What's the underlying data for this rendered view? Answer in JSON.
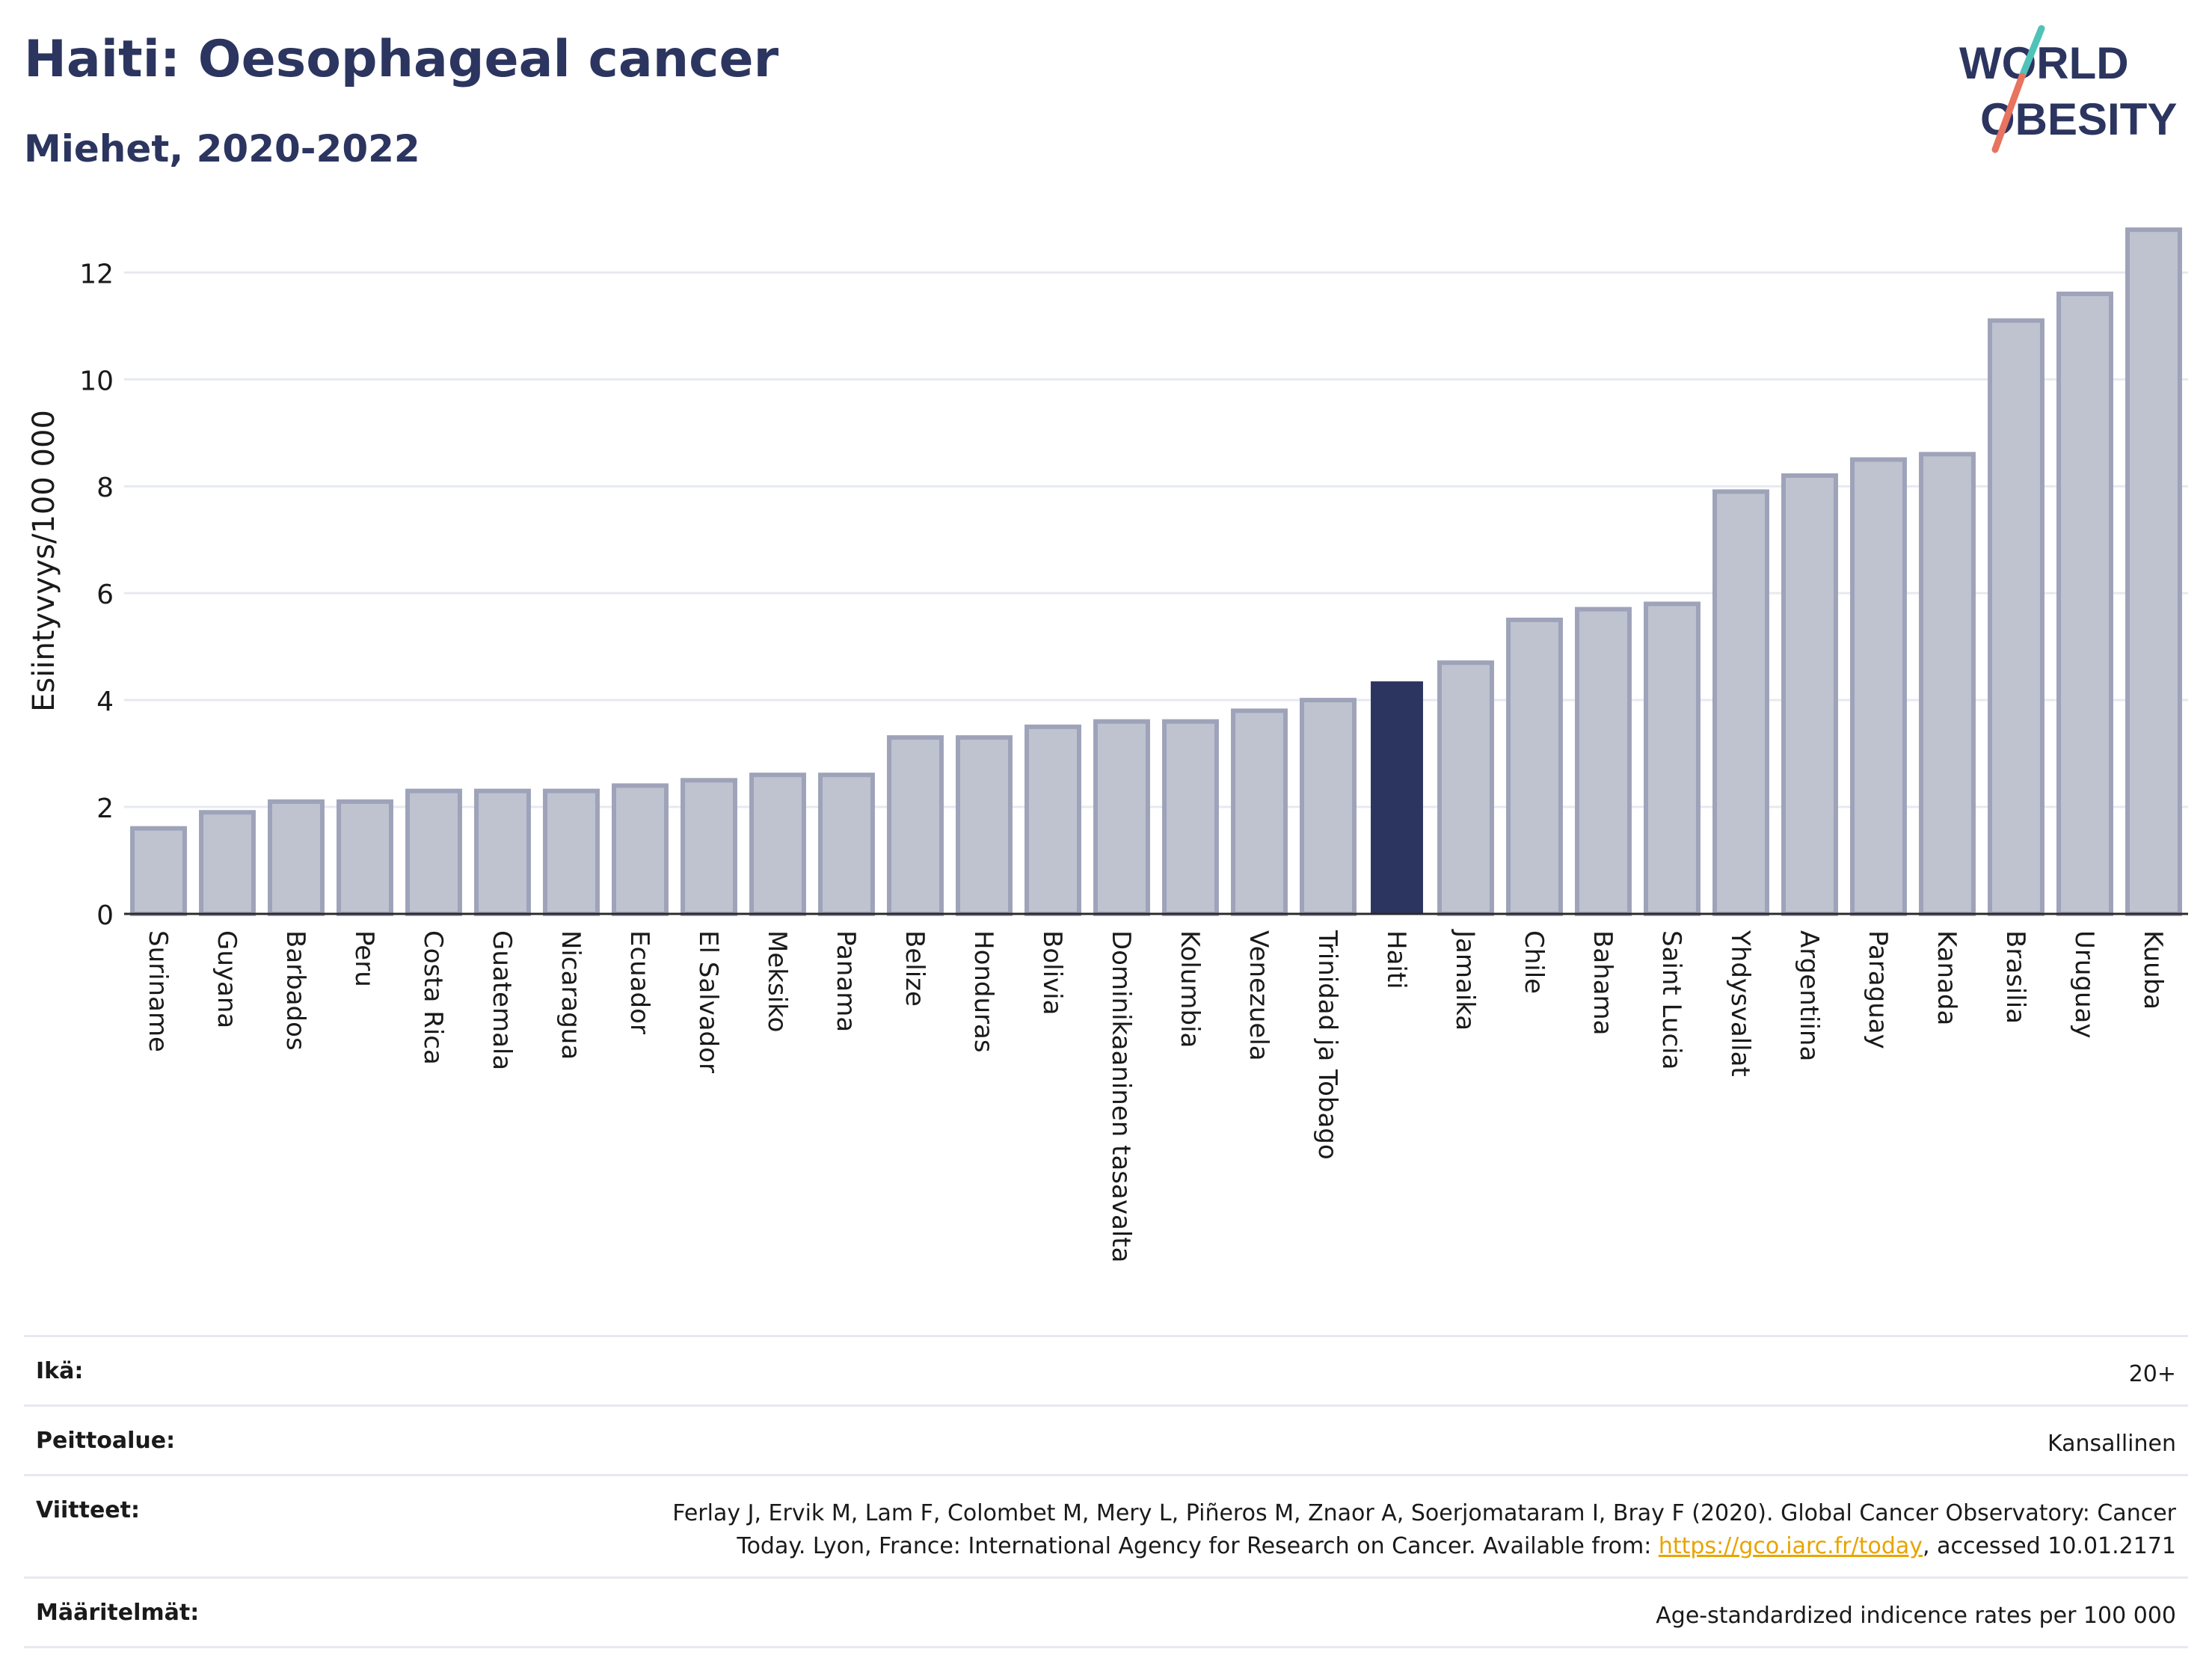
{
  "header": {
    "title": "Haiti: Oesophageal cancer",
    "subtitle": "Miehet, 2020-2022"
  },
  "logo": {
    "line1": "WORLD",
    "line2": "OBESITY",
    "accent_colors": [
      "#4fc3b8",
      "#e8735f"
    ]
  },
  "colors": {
    "bar": "#bfc3d0",
    "bar_border": "#9ea3b9",
    "highlight": "#2b355f",
    "grid": "#e6e9f0",
    "axis_text": "#1a1a1a"
  },
  "chart_data": {
    "type": "bar",
    "title": "Haiti: Oesophageal cancer",
    "subtitle": "Miehet, 2020-2022",
    "xlabel": "",
    "ylabel": "Esiintyvyys/100 000",
    "ylim": [
      0,
      12.9
    ],
    "yticks": [
      0,
      2,
      4,
      6,
      8,
      10,
      12
    ],
    "grid": true,
    "highlight_category": "Haiti",
    "categories": [
      "Suriname",
      "Guyana",
      "Barbados",
      "Peru",
      "Costa Rica",
      "Guatemala",
      "Nicaragua",
      "Ecuador",
      "El Salvador",
      "Meksiko",
      "Panama",
      "Belize",
      "Honduras",
      "Bolivia",
      "Dominikaaninen tasavalta",
      "Kolumbia",
      "Venezuela",
      "Trinidad ja Tobago",
      "Haiti",
      "Jamaika",
      "Chile",
      "Bahama",
      "Saint Lucia",
      "Yhdysvallat",
      "Argentiina",
      "Paraguay",
      "Kanada",
      "Brasilia",
      "Uruguay",
      "Kuuba"
    ],
    "values": [
      1.6,
      1.9,
      2.1,
      2.1,
      2.3,
      2.3,
      2.3,
      2.4,
      2.5,
      2.6,
      2.6,
      3.3,
      3.3,
      3.5,
      3.6,
      3.6,
      3.8,
      4.0,
      4.35,
      4.7,
      5.5,
      5.7,
      5.8,
      7.9,
      8.2,
      8.5,
      8.6,
      11.1,
      11.6,
      12.8
    ]
  },
  "info": {
    "age_label": "Ikä:",
    "age_value": "20+",
    "coverage_label": "Peittoalue:",
    "coverage_value": "Kansallinen",
    "refs_label": "Viitteet:",
    "refs_text_1": "Ferlay J, Ervik M, Lam F, Colombet M, Mery L, Piñeros M, Znaor A, Soerjomataram I, Bray F (2020). Global Cancer Observatory: Cancer",
    "refs_text_2": "Today. Lyon, France: International Agency for Research on Cancer. Available from: ",
    "refs_link": "https://gco.iarc.fr/today",
    "refs_text_3": ", accessed 10.01.2171",
    "definitions_label": "Määritelmät:",
    "definitions_value": "Age-standardized indicence rates per 100 000"
  }
}
